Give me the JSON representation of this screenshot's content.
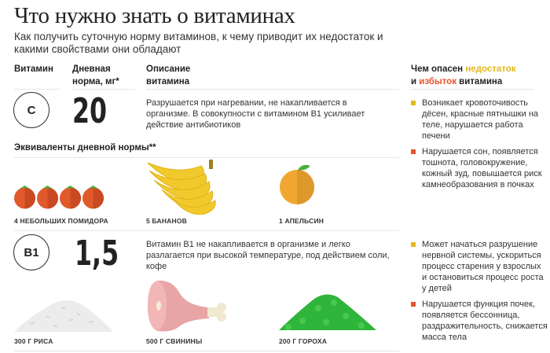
{
  "title": "Что нужно знать о витаминах",
  "subtitle": "Как получить суточную норму витаминов, к чему приводит их недостаток и какими свойствами они обладают",
  "headers": {
    "vitamin": "Витамин",
    "norm": "Дневная норма, мг*",
    "description": "Описание витамина",
    "danger_prefix": "Чем опасен ",
    "danger_deficit": "недостаток",
    "danger_and": "и ",
    "danger_excess": "избыток",
    "danger_suffix": " витамина"
  },
  "colors": {
    "deficit": "#e3b91c",
    "excess": "#e8552a"
  },
  "equivalents_title": "Эквиваленты дневной нормы**",
  "vitamins": [
    {
      "name": "C",
      "norm": "20",
      "description": "Разрушается при нагревании, не накапливается в организме. В совокупности с витамином В1 усиливает действие антибиотиков",
      "deficit": "Возникает кровоточивость дёсен, красные пятнышки на теле, нарушается работа печени",
      "excess": "Нарушается сон, появляется тошнота, головокружение, кожный зуд, повышается риск камнеобразования в почках",
      "foods": [
        {
          "label": "4 НЕБОЛЬШИХ ПОМИДОРА",
          "icon": "tomato-icon"
        },
        {
          "label": "5 БАНАНОВ",
          "icon": "banana-icon"
        },
        {
          "label": "1 АПЕЛЬСИН",
          "icon": "orange-icon"
        }
      ]
    },
    {
      "name": "В1",
      "norm": "1,5",
      "description": "Витамин В1 не накапливается в организме и легко разлагается при высокой температуре, под действием соли, кофе",
      "deficit": "Может начаться разрушение нервной системы, ускориться процесс старения у взрослых и остановиться процесс роста у детей",
      "excess": "Нарушается функция почек, появляется бессонница, раздражительность, снижается масса тела",
      "foods": [
        {
          "label": "300 Г РИСА",
          "icon": "rice-icon"
        },
        {
          "label": "500 Г СВИНИНЫ",
          "icon": "ham-icon"
        },
        {
          "label": "200 Г ГОРОХА",
          "icon": "peas-icon"
        }
      ]
    }
  ]
}
